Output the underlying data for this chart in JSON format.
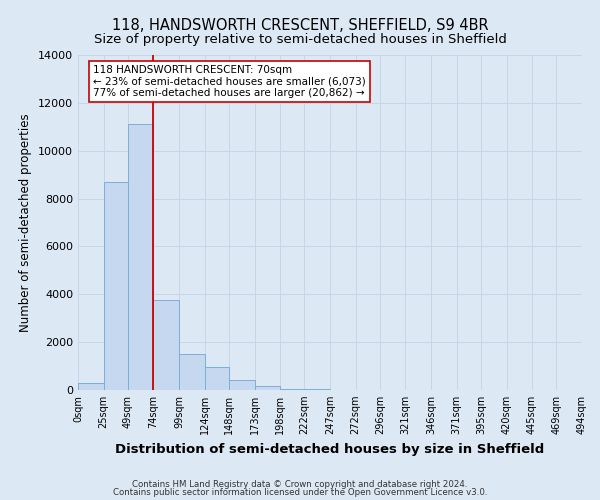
{
  "title": "118, HANDSWORTH CRESCENT, SHEFFIELD, S9 4BR",
  "subtitle": "Size of property relative to semi-detached houses in Sheffield",
  "xlabel": "Distribution of semi-detached houses by size in Sheffield",
  "ylabel": "Number of semi-detached properties",
  "footnote1": "Contains HM Land Registry data © Crown copyright and database right 2024.",
  "footnote2": "Contains public sector information licensed under the Open Government Licence v3.0.",
  "bar_edges": [
    0,
    25,
    49,
    74,
    99,
    124,
    148,
    173,
    198,
    222,
    247,
    272,
    296,
    321,
    346,
    371,
    395,
    420,
    445,
    469,
    494
  ],
  "bar_labels": [
    "0sqm",
    "25sqm",
    "49sqm",
    "74sqm",
    "99sqm",
    "124sqm",
    "148sqm",
    "173sqm",
    "198sqm",
    "222sqm",
    "247sqm",
    "272sqm",
    "296sqm",
    "321sqm",
    "346sqm",
    "371sqm",
    "395sqm",
    "420sqm",
    "445sqm",
    "469sqm",
    "494sqm"
  ],
  "bar_heights": [
    300,
    8700,
    11100,
    3750,
    1500,
    950,
    400,
    150,
    60,
    30,
    10,
    0,
    0,
    0,
    0,
    0,
    0,
    0,
    0,
    0
  ],
  "bar_color": "#c5d8f0",
  "bar_edge_color": "#7bafd4",
  "property_line_x": 74,
  "annotation_title": "118 HANDSWORTH CRESCENT: 70sqm",
  "annotation_line1": "← 23% of semi-detached houses are smaller (6,073)",
  "annotation_line2": "77% of semi-detached houses are larger (20,862) →",
  "annotation_box_color": "#ffffff",
  "annotation_border_color": "#cc0000",
  "vline_color": "#cc0000",
  "ylim": [
    0,
    14000
  ],
  "yticks": [
    0,
    2000,
    4000,
    6000,
    8000,
    10000,
    12000,
    14000
  ],
  "grid_color": "#c8d4e8",
  "bg_color": "#dce8f4",
  "title_fontsize": 10.5,
  "subtitle_fontsize": 9.5,
  "xlabel_fontsize": 9.5,
  "ylabel_fontsize": 8.5,
  "annotation_fontsize": 7.5,
  "footnote_fontsize": 6.2
}
